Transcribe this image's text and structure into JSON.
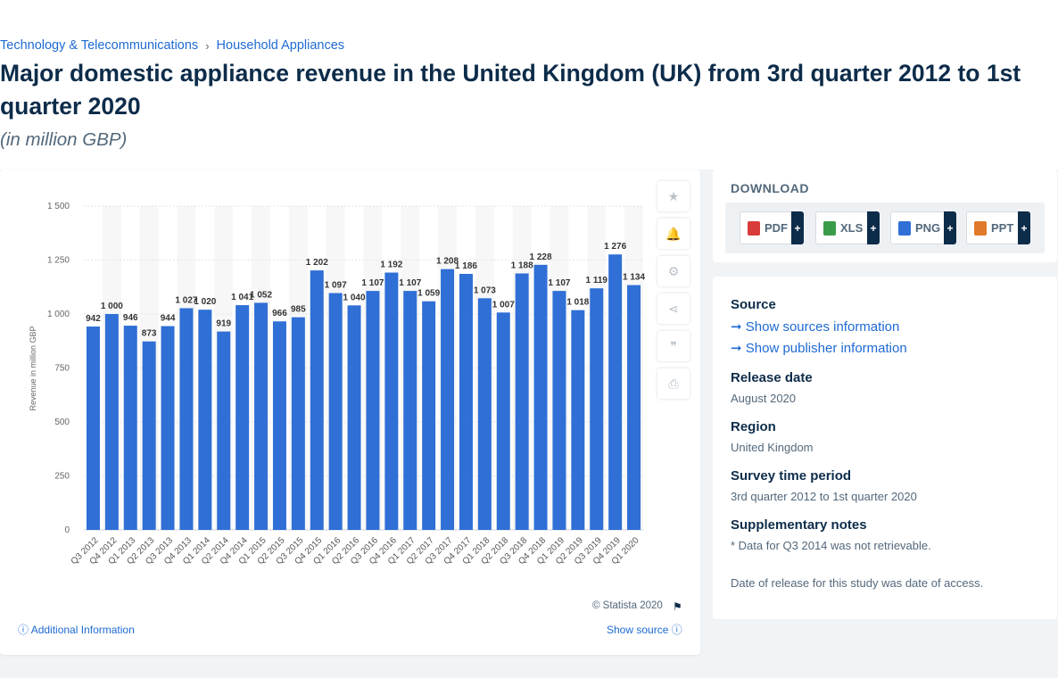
{
  "breadcrumb": {
    "item1": "Technology & Telecommunications",
    "sep": "›",
    "item2": "Household Appliances"
  },
  "header": {
    "title": "Major domestic appliance revenue in the United Kingdom (UK) from 3rd quarter 2012 to 1st quarter 2020",
    "subtitle": "(in million GBP)"
  },
  "chart_data": {
    "type": "bar",
    "categories": [
      "Q3 2012",
      "Q4 2012",
      "Q1 2013",
      "Q2 2013",
      "Q3 2013",
      "Q4 2013",
      "Q1 2014",
      "Q2 2014",
      "Q4 2014",
      "Q1 2015",
      "Q2 2015",
      "Q3 2015",
      "Q4 2015",
      "Q1 2016",
      "Q2 2016",
      "Q3 2016",
      "Q4 2016",
      "Q1 2017",
      "Q2 2017",
      "Q3 2017",
      "Q4 2017",
      "Q1 2018",
      "Q2 2018",
      "Q3 2018",
      "Q4 2018",
      "Q1 2019",
      "Q2 2019",
      "Q3 2019",
      "Q4 2019",
      "Q1 2020"
    ],
    "values": [
      942,
      1000,
      946,
      873,
      944,
      1027,
      1020,
      919,
      1041,
      1052,
      966,
      985,
      1202,
      1097,
      1040,
      1107,
      1192,
      1107,
      1059,
      1208,
      1186,
      1073,
      1007,
      1188,
      1228,
      1107,
      1018,
      1119,
      1276,
      1134
    ],
    "value_labels": [
      "942",
      "1 000",
      "946",
      "873",
      "944",
      "1 027",
      "1 020",
      "919",
      "1 041",
      "1 052",
      "966",
      "985",
      "1 202",
      "1 097",
      "1 040",
      "1 107",
      "1 192",
      "1 107",
      "1 059",
      "1 208",
      "1 186",
      "1 073",
      "1 007",
      "1 188",
      "1 228",
      "1 107",
      "1 018",
      "1 119",
      "1 276",
      "1 134"
    ],
    "ylabel": "Revenue in million GBP",
    "ylim": [
      0,
      1500
    ],
    "yticks": [
      0,
      250,
      500,
      750,
      1000,
      1250,
      1500
    ],
    "ytick_labels": [
      "0",
      "250",
      "500",
      "750",
      "1 000",
      "1 250",
      "1 500"
    ],
    "bar_color": "#2f6fd6",
    "grid": true
  },
  "chart_footer": {
    "copyright": "© Statista 2020",
    "additional_info": "Additional Information",
    "show_source": "Show source"
  },
  "download": {
    "title": "DOWNLOAD",
    "buttons": [
      {
        "label": "PDF",
        "color": "#d93b3b"
      },
      {
        "label": "XLS",
        "color": "#3a9b48"
      },
      {
        "label": "PNG",
        "color": "#2f6fd6"
      },
      {
        "label": "PPT",
        "color": "#e07a2a"
      }
    ]
  },
  "info": {
    "source_label": "Source",
    "show_sources": "Show sources information",
    "show_publisher": "Show publisher information",
    "release_label": "Release date",
    "release_value": "August 2020",
    "region_label": "Region",
    "region_value": "United Kingdom",
    "survey_label": "Survey time period",
    "survey_value": "3rd quarter 2012 to 1st quarter 2020",
    "notes_label": "Supplementary notes",
    "notes_value": "* Data for Q3 2014 was not retrievable.",
    "access_note": "Date of release for this study was date of access."
  }
}
